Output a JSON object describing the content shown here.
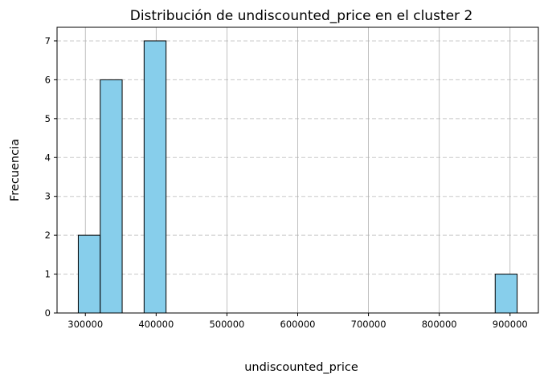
{
  "chart_data": {
    "type": "bar",
    "title": "Distribución de undiscounted_price en el cluster 2",
    "xlabel": "undiscounted_price",
    "ylabel": "Frecuencia",
    "bins": [
      {
        "x0": 290000,
        "x1": 321000,
        "count": 2
      },
      {
        "x0": 321000,
        "x1": 352000,
        "count": 6
      },
      {
        "x0": 352000,
        "x1": 383000,
        "count": 0
      },
      {
        "x0": 383000,
        "x1": 414000,
        "count": 7
      },
      {
        "x0": 414000,
        "x1": 445000,
        "count": 0
      },
      {
        "x0": 445000,
        "x1": 476000,
        "count": 0
      },
      {
        "x0": 476000,
        "x1": 507000,
        "count": 0
      },
      {
        "x0": 507000,
        "x1": 538000,
        "count": 0
      },
      {
        "x0": 538000,
        "x1": 569000,
        "count": 0
      },
      {
        "x0": 569000,
        "x1": 600000,
        "count": 0
      },
      {
        "x0": 600000,
        "x1": 631000,
        "count": 0
      },
      {
        "x0": 631000,
        "x1": 662000,
        "count": 0
      },
      {
        "x0": 662000,
        "x1": 693000,
        "count": 0
      },
      {
        "x0": 693000,
        "x1": 724000,
        "count": 0
      },
      {
        "x0": 724000,
        "x1": 755000,
        "count": 0
      },
      {
        "x0": 755000,
        "x1": 786000,
        "count": 0
      },
      {
        "x0": 786000,
        "x1": 817000,
        "count": 0
      },
      {
        "x0": 817000,
        "x1": 848000,
        "count": 0
      },
      {
        "x0": 848000,
        "x1": 879000,
        "count": 0
      },
      {
        "x0": 879000,
        "x1": 910000,
        "count": 1
      }
    ],
    "xlim": [
      260000,
      940000
    ],
    "ylim": [
      0,
      7.35
    ],
    "xticks": [
      300000,
      400000,
      500000,
      600000,
      700000,
      800000,
      900000
    ],
    "yticks": [
      0,
      1,
      2,
      3,
      4,
      5,
      6,
      7
    ],
    "grid": true,
    "bar_color": "#87CEEB",
    "edge_color": "#000000"
  }
}
